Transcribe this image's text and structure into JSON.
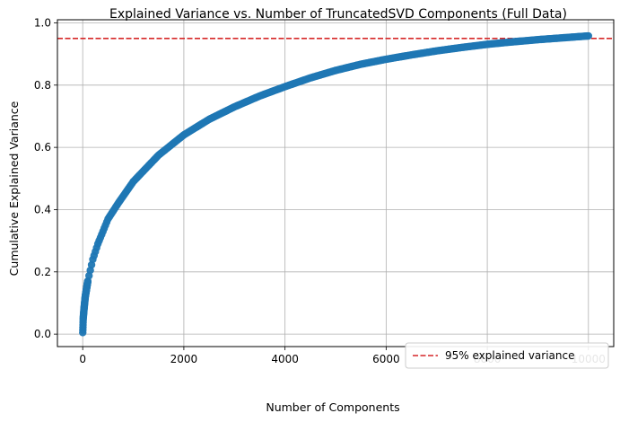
{
  "chart_data": {
    "type": "scatter",
    "title": "Explained Variance vs. Number of TruncatedSVD Components (Full Data)",
    "xlabel": "Number of Components",
    "ylabel": "Cumulative Explained Variance",
    "xlim": [
      -500,
      10500
    ],
    "ylim": [
      -0.04,
      1.01
    ],
    "xticks": [
      0,
      2000,
      4000,
      6000,
      8000,
      10000
    ],
    "xtick_labels": [
      "0",
      "2000",
      "4000",
      "6000",
      "8000",
      "10000"
    ],
    "yticks": [
      0.0,
      0.2,
      0.4,
      0.6,
      0.8,
      1.0
    ],
    "ytick_labels": [
      "0.0",
      "0.2",
      "0.4",
      "0.6",
      "0.8",
      "1.0"
    ],
    "grid": true,
    "legend_position": "lower-right",
    "series": [
      {
        "color": "#1f77b4",
        "marker": "circle",
        "x": [
          1,
          10,
          25,
          50,
          100,
          200,
          300,
          400,
          500,
          700,
          1000,
          1500,
          2000,
          2500,
          3000,
          3500,
          4000,
          4500,
          5000,
          5500,
          6000,
          6500,
          7000,
          7500,
          8000,
          8500,
          9000,
          9500,
          10000
        ],
        "y": [
          0.005,
          0.05,
          0.08,
          0.12,
          0.17,
          0.24,
          0.29,
          0.33,
          0.37,
          0.42,
          0.49,
          0.575,
          0.64,
          0.69,
          0.73,
          0.765,
          0.795,
          0.823,
          0.847,
          0.867,
          0.883,
          0.897,
          0.91,
          0.921,
          0.931,
          0.939,
          0.946,
          0.952,
          0.958
        ]
      }
    ],
    "reference_lines": [
      {
        "orientation": "horizontal",
        "y": 0.95,
        "color": "#d62728",
        "style": "dashed",
        "label": "95% explained variance"
      }
    ]
  }
}
